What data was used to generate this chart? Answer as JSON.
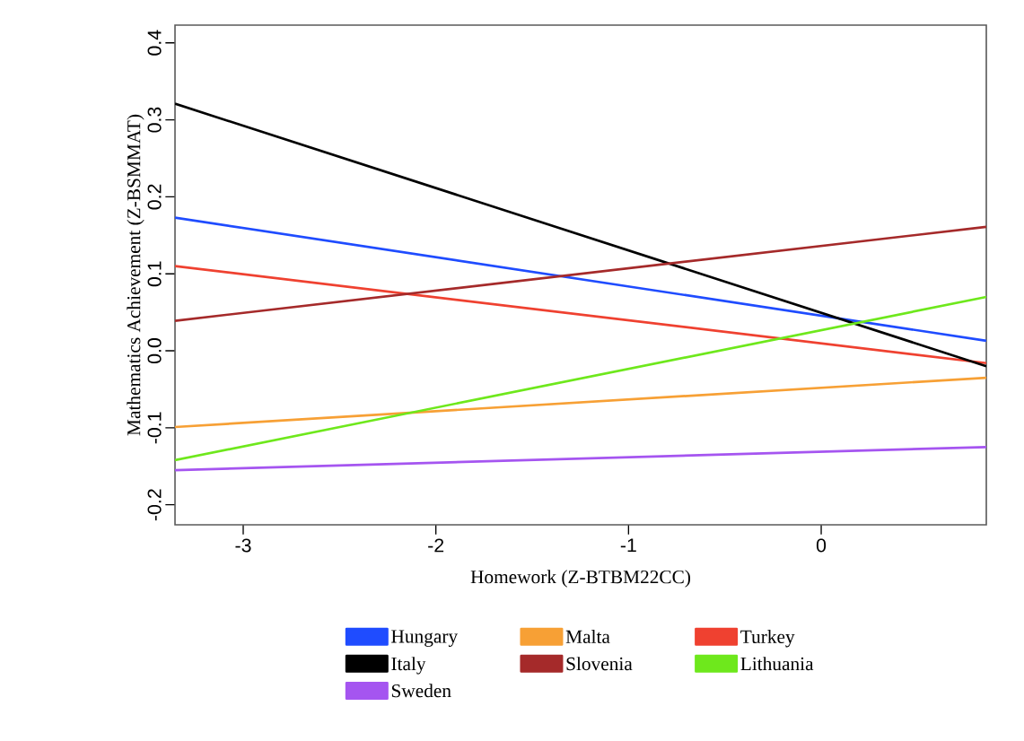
{
  "chart_data": {
    "type": "line",
    "xlabel": "Homework (Z-BTBM22CC)",
    "ylabel": "Mathematics Achievement (Z-BSMMAT)",
    "x": [
      -3.354,
      0.857
    ],
    "xlim": [
      -3.354,
      0.857
    ],
    "ylim": [
      -0.226,
      0.423
    ],
    "xticks": [
      -3,
      -2,
      -1,
      0
    ],
    "yticks": [
      {
        "value": -0.2,
        "label": "-0.2"
      },
      {
        "value": -0.1,
        "label": "-0.1"
      },
      {
        "value": 0,
        "label": "0.0"
      },
      {
        "value": 0.1,
        "label": "0.1"
      },
      {
        "value": 0.2,
        "label": "0.2"
      },
      {
        "value": 0.3,
        "label": "0.3"
      },
      {
        "value": 0.4,
        "label": "0.4"
      }
    ],
    "legend": "bottom",
    "marker": "none",
    "line_style": "solid",
    "series": [
      {
        "name": "Hungary",
        "color": "#1f4cff",
        "values": [
          0.173,
          0.013
        ]
      },
      {
        "name": "Italy",
        "color": "#000000",
        "values": [
          0.321,
          -0.02
        ]
      },
      {
        "name": "Lithuania",
        "color": "#6ee81c",
        "values": [
          -0.142,
          0.07
        ]
      },
      {
        "name": "Malta",
        "color": "#f7a035",
        "values": [
          -0.099,
          -0.035
        ]
      },
      {
        "name": "Slovenia",
        "color": "#a52a2a",
        "values": [
          0.039,
          0.161
        ]
      },
      {
        "name": "Sweden",
        "color": "#a555f0",
        "values": [
          -0.155,
          -0.125
        ]
      },
      {
        "name": "Turkey",
        "color": "#ef4130",
        "values": [
          0.11,
          -0.016
        ]
      }
    ]
  }
}
